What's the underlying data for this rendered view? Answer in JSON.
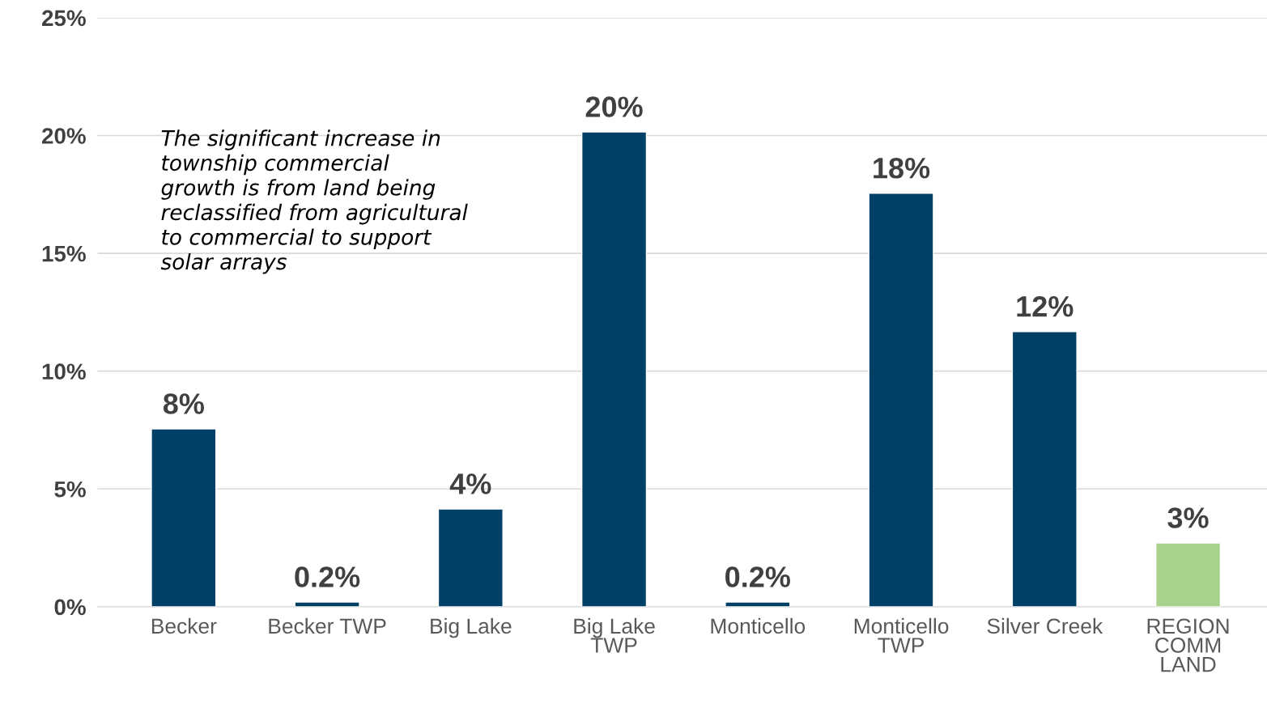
{
  "chart_data": {
    "type": "bar",
    "categories": [
      "Becker",
      "Becker TWP",
      "Big Lake",
      "Big Lake\nTWP",
      "Monticello",
      "Monticello\nTWP",
      "Silver Creek",
      "REGION\nCOMM\nLAND"
    ],
    "values": [
      7.55,
      0.2,
      4.15,
      20.15,
      0.2,
      17.55,
      11.68,
      2.71
    ],
    "value_labels": [
      "8%",
      "0.2%",
      "4%",
      "20%",
      "0.2%",
      "18%",
      "12%",
      "3%"
    ],
    "colors": [
      "#003f66",
      "#003f66",
      "#003f66",
      "#003f66",
      "#003f66",
      "#003f66",
      "#003f66",
      "#a9d18e"
    ],
    "ylim": [
      0,
      25
    ],
    "yticks": [
      {
        "value": 0,
        "label": "0%"
      },
      {
        "value": 5,
        "label": "5%"
      },
      {
        "value": 10,
        "label": "10%"
      },
      {
        "value": 15,
        "label": "15%"
      },
      {
        "value": 20,
        "label": "20%"
      },
      {
        "value": 25,
        "label": "25%"
      }
    ],
    "grid": "y",
    "legend": false,
    "annotations": [
      "The significant increase in\ntownship commercial\ngrowth is from land being\nreclassified from agricultural\nto commercial to support\nsolar arrays"
    ]
  }
}
